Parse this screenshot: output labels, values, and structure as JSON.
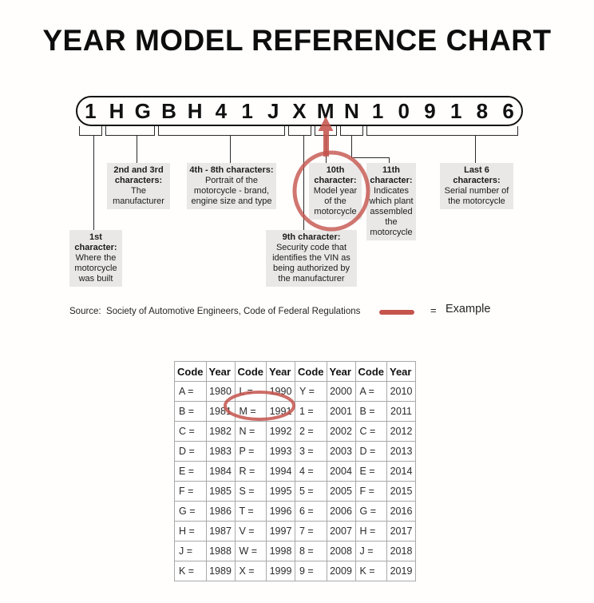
{
  "title": "YEAR MODEL REFERENCE CHART",
  "vin": {
    "characters": [
      "1",
      "H",
      "G",
      "B",
      "H",
      "4",
      "1",
      "J",
      "X",
      "M",
      "N",
      "1",
      "0",
      "9",
      "1",
      "8",
      "6"
    ]
  },
  "callouts": [
    {
      "label": "1st character:",
      "desc": "Where the motorcycle was built"
    },
    {
      "label": "2nd and 3rd characters:",
      "desc": "The manufacturer"
    },
    {
      "label": "4th - 8th characters:",
      "desc": "Portrait of the motorcycle - brand, engine size and type"
    },
    {
      "label": "9th character:",
      "desc": "Security code that identifies the VIN as being authorized by the manufacturer"
    },
    {
      "label": "10th character:",
      "desc": "Model year of the motorcycle"
    },
    {
      "label": "11th character:",
      "desc": "Indicates which plant assembled the motorcycle"
    },
    {
      "label": "Last 6 characters:",
      "desc": "Serial number of the motorcycle"
    }
  ],
  "source_line": "Source:  Society of Automotive Engineers, Code of Federal Regulations",
  "legend": {
    "equals_sign": "=",
    "label": "Example"
  },
  "colors": {
    "example_red": "#c4544c",
    "callout_bg": "#e9e8e7",
    "connector_black": "#2a2a2a",
    "table_border": "#a9a9a9"
  },
  "chart_data": {
    "type": "table",
    "title": "Year model code table",
    "headers": [
      "Code",
      "Year",
      "Code",
      "Year",
      "Code",
      "Year",
      "Code",
      "Year"
    ],
    "rows": [
      [
        "A =",
        "1980",
        "L =",
        "1990",
        "Y =",
        "2000",
        "A =",
        "2010"
      ],
      [
        "B =",
        "1981",
        "M =",
        "1991",
        "1 =",
        "2001",
        "B =",
        "2011"
      ],
      [
        "C =",
        "1982",
        "N =",
        "1992",
        "2 =",
        "2002",
        "C =",
        "2012"
      ],
      [
        "D =",
        "1983",
        "P =",
        "1993",
        "3 =",
        "2003",
        "D =",
        "2013"
      ],
      [
        "E =",
        "1984",
        "R =",
        "1994",
        "4 =",
        "2004",
        "E =",
        "2014"
      ],
      [
        "F =",
        "1985",
        "S =",
        "1995",
        "5 =",
        "2005",
        "F =",
        "2015"
      ],
      [
        "G =",
        "1986",
        "T =",
        "1996",
        "6 =",
        "2006",
        "G =",
        "2016"
      ],
      [
        "H =",
        "1987",
        "V =",
        "1997",
        "7 =",
        "2007",
        "H =",
        "2017"
      ],
      [
        "J =",
        "1988",
        "W =",
        "1998",
        "8 =",
        "2008",
        "J =",
        "2018"
      ],
      [
        "K =",
        "1989",
        "X =",
        "1999",
        "9 =",
        "2009",
        "K =",
        "2019"
      ]
    ],
    "highlighted_example": "M = 1991"
  }
}
